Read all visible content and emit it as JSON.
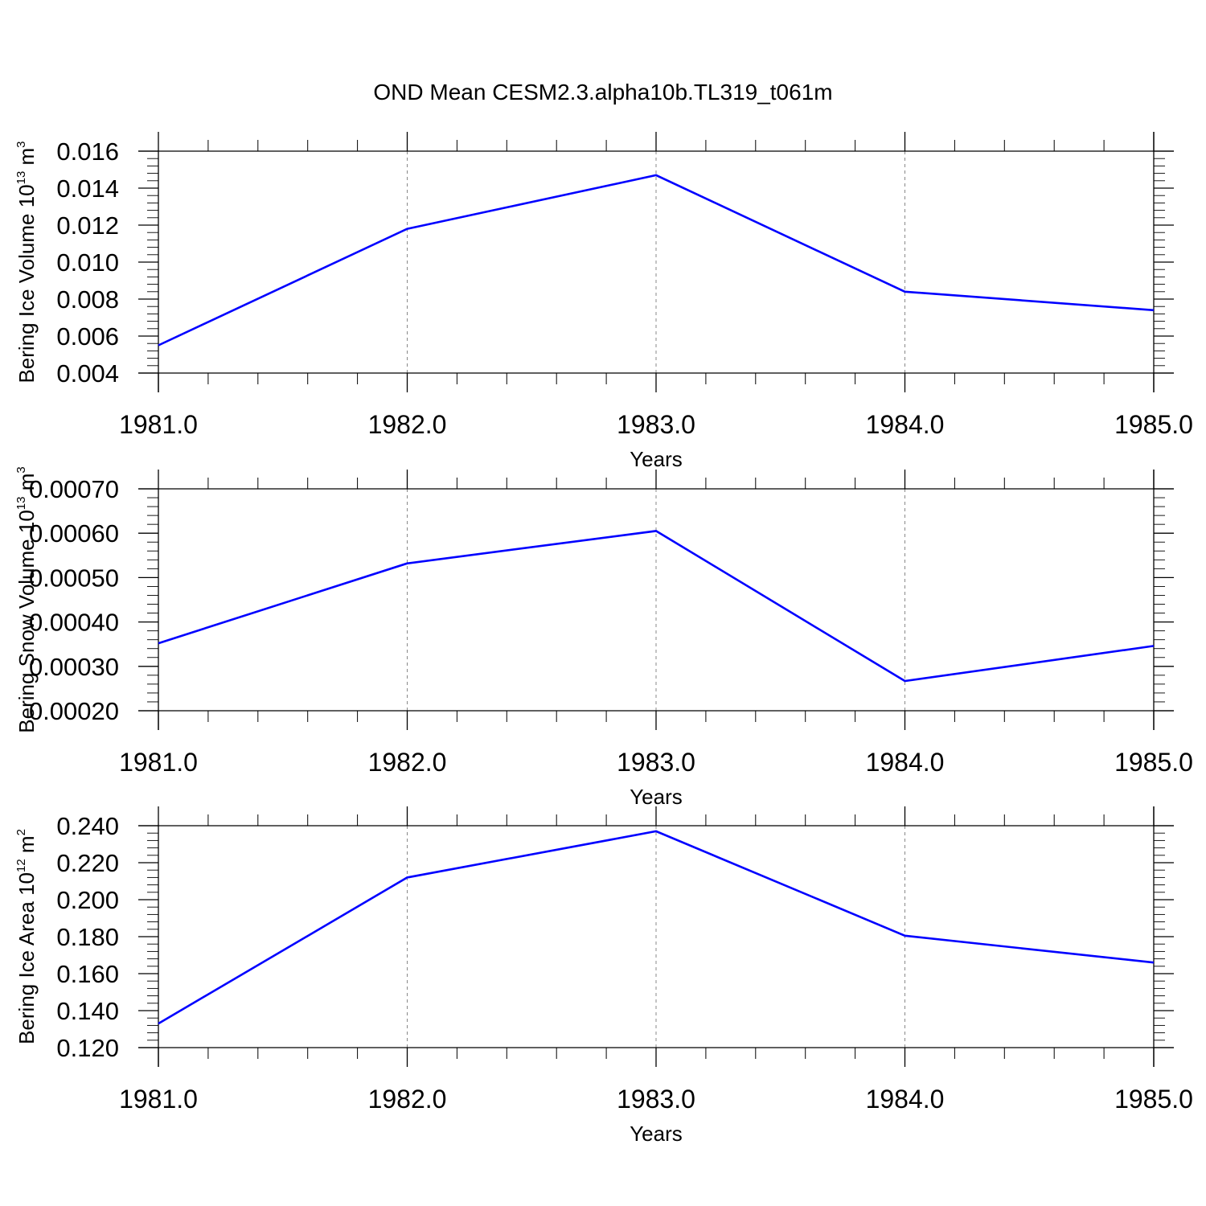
{
  "title": "OND Mean CESM2.3.alpha10b.TL319_t061m",
  "chart_data": [
    {
      "type": "line",
      "ylabel": "Bering Ice Volume 10",
      "ylabel_exp": "13",
      "ylabel_unit": " m",
      "ylabel_unit_exp": "3",
      "xlabel": "Years",
      "x": [
        1981.0,
        1982.0,
        1983.0,
        1984.0,
        1985.0
      ],
      "x_tick_labels": [
        "1981.0",
        "1982.0",
        "1983.0",
        "1984.0",
        "1985.0"
      ],
      "ylim": [
        0.004,
        0.016
      ],
      "y_ticks": [
        0.004,
        0.006,
        0.008,
        0.01,
        0.012,
        0.014,
        0.016
      ],
      "y_tick_labels": [
        "0.004",
        "0.006",
        "0.008",
        "0.010",
        "0.012",
        "0.014",
        "0.016"
      ],
      "series": [
        {
          "values": [
            0.0055,
            0.0118,
            0.0147,
            0.0084,
            0.0074
          ],
          "color": "#0000ff"
        }
      ]
    },
    {
      "type": "line",
      "ylabel": "Bering Snow Volume 10",
      "ylabel_exp": "13",
      "ylabel_unit": " m",
      "ylabel_unit_exp": "3",
      "xlabel": "Years",
      "x": [
        1981.0,
        1982.0,
        1983.0,
        1984.0,
        1985.0
      ],
      "x_tick_labels": [
        "1981.0",
        "1982.0",
        "1983.0",
        "1984.0",
        "1985.0"
      ],
      "ylim": [
        0.0002,
        0.0007
      ],
      "y_ticks": [
        0.0002,
        0.0003,
        0.0004,
        0.0005,
        0.0006,
        0.0007
      ],
      "y_tick_labels": [
        "0.00020",
        "0.00030",
        "0.00040",
        "0.00050",
        "0.00060",
        "0.00070"
      ],
      "series": [
        {
          "values": [
            0.000352,
            0.000532,
            0.000605,
            0.000267,
            0.000346
          ],
          "color": "#0000ff"
        }
      ]
    },
    {
      "type": "line",
      "ylabel": "Bering Ice Area 10",
      "ylabel_exp": "12",
      "ylabel_unit": " m",
      "ylabel_unit_exp": "2",
      "xlabel": "Years",
      "x": [
        1981.0,
        1982.0,
        1983.0,
        1984.0,
        1985.0
      ],
      "x_tick_labels": [
        "1981.0",
        "1982.0",
        "1983.0",
        "1984.0",
        "1985.0"
      ],
      "ylim": [
        0.12,
        0.24
      ],
      "y_ticks": [
        0.12,
        0.14,
        0.16,
        0.18,
        0.2,
        0.22,
        0.24
      ],
      "y_tick_labels": [
        "0.120",
        "0.140",
        "0.160",
        "0.180",
        "0.200",
        "0.220",
        "0.240"
      ],
      "series": [
        {
          "values": [
            0.133,
            0.212,
            0.237,
            0.1805,
            0.166
          ],
          "color": "#0000ff"
        }
      ]
    }
  ]
}
